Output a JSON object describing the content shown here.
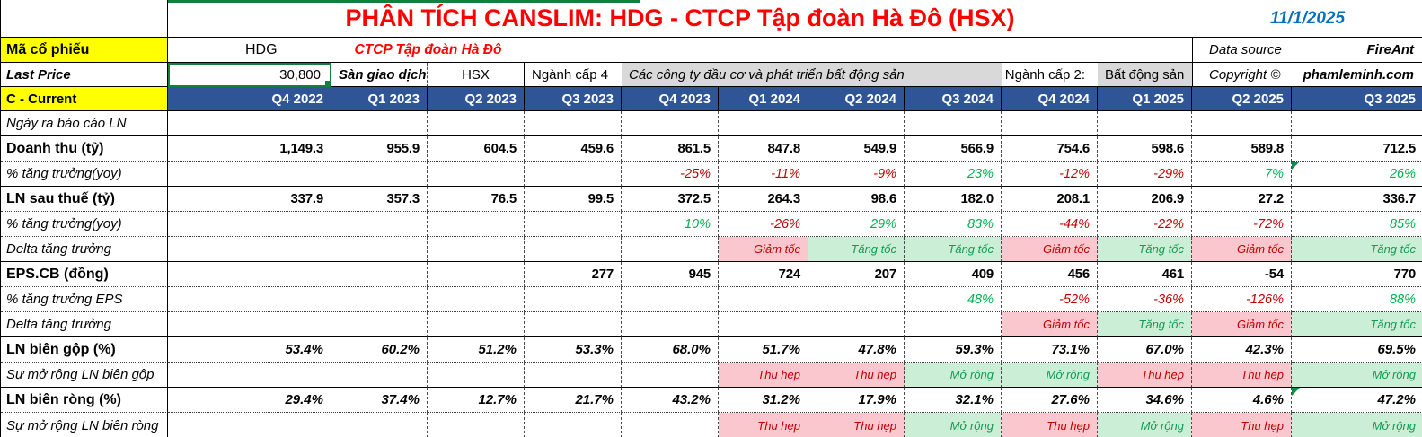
{
  "header": {
    "title": "PHÂN TÍCH CANSLIM: HDG - CTCP Tập đoàn Hà Đô (HSX)",
    "date": "11/1/2025",
    "ticker_label": "Mã cổ phiếu",
    "ticker": "HDG",
    "company_name": "CTCP Tập đoàn Hà Đô",
    "data_source_label": "Data source",
    "data_source_value": "FireAnt",
    "last_price_label": "Last Price",
    "last_price_value": "30,800",
    "exchange_label": "Sàn giao dịch",
    "exchange_value": "HSX",
    "industry_l4_label": "Ngành cấp 4",
    "industry_l4_value": "Các công ty đầu cơ và phát triển bất động sản",
    "industry_l2_label": "Ngành cấp 2:",
    "industry_l2_value": "Bất động sản",
    "copyright_label": "Copyright ©",
    "copyright_owner": "phamleminh.com"
  },
  "table": {
    "section_label": "C - Current",
    "quarters": [
      "Q4 2022",
      "Q1 2023",
      "Q2 2023",
      "Q3 2023",
      "Q4 2023",
      "Q1 2024",
      "Q2 2024",
      "Q3 2024",
      "Q4 2024",
      "Q1 2025",
      "Q2 2025",
      "Q3 2025"
    ],
    "delta_bad_terms": [
      "Giảm tốc",
      "Thu hẹp"
    ],
    "delta_good_terms": [
      "Tăng tốc",
      "Mở rộng"
    ],
    "rows": [
      {
        "label": "Ngày ra báo cáo LN",
        "style": "italic",
        "type": "empty",
        "border": "solid",
        "values": [
          "",
          "",
          "",
          "",
          "",
          "",
          "",
          "",
          "",
          "",
          "",
          ""
        ]
      },
      {
        "label": "Doanh thu (tỷ)",
        "style": "bold",
        "type": "number",
        "border": "dot",
        "values": [
          "1,149.3",
          "955.9",
          "604.5",
          "459.6",
          "861.5",
          "847.8",
          "549.9",
          "566.9",
          "754.6",
          "598.6",
          "589.8",
          "712.5"
        ]
      },
      {
        "label": "% tăng trưởng(yoy)",
        "style": "italic",
        "type": "percent",
        "border": "solid",
        "flags": [
          11
        ],
        "values": [
          "",
          "",
          "",
          "",
          "-25%",
          "-11%",
          "-9%",
          "23%",
          "-12%",
          "-29%",
          "7%",
          "26%"
        ]
      },
      {
        "label": "LN sau thuế (tỷ)",
        "style": "bold",
        "type": "number",
        "border": "dot",
        "values": [
          "337.9",
          "357.3",
          "76.5",
          "99.5",
          "372.5",
          "264.3",
          "98.6",
          "182.0",
          "208.1",
          "206.9",
          "27.2",
          "336.7"
        ]
      },
      {
        "label": "% tăng trưởng(yoy)",
        "style": "italic",
        "type": "percent",
        "border": "dot",
        "values": [
          "",
          "",
          "",
          "",
          "10%",
          "-26%",
          "29%",
          "83%",
          "-44%",
          "-22%",
          "-72%",
          "85%"
        ]
      },
      {
        "label": "Delta tăng trưởng",
        "style": "italic",
        "type": "delta",
        "border": "solid",
        "values": [
          "",
          "",
          "",
          "",
          "",
          "Giảm tốc",
          "Tăng tốc",
          "Tăng tốc",
          "Giảm tốc",
          "Tăng tốc",
          "Giảm tốc",
          "Tăng tốc"
        ]
      },
      {
        "label": "EPS.CB (đồng)",
        "style": "bold",
        "type": "number",
        "border": "dot",
        "values": [
          "",
          "",
          "",
          "277",
          "945",
          "724",
          "207",
          "409",
          "456",
          "461",
          "-54",
          "770"
        ]
      },
      {
        "label": "% tăng trưởng EPS",
        "style": "italic",
        "type": "percent",
        "border": "dot",
        "values": [
          "",
          "",
          "",
          "",
          "",
          "",
          "",
          "48%",
          "-52%",
          "-36%",
          "-126%",
          "88%"
        ]
      },
      {
        "label": "Delta tăng trưởng",
        "style": "italic",
        "type": "delta",
        "border": "solid",
        "values": [
          "",
          "",
          "",
          "",
          "",
          "",
          "",
          "",
          "Giảm tốc",
          "Tăng tốc",
          "Giảm tốc",
          "Tăng tốc"
        ]
      },
      {
        "label": "LN biên gộp (%)",
        "style": "bold",
        "type": "margin",
        "border": "dot",
        "values": [
          "53.4%",
          "60.2%",
          "51.2%",
          "53.3%",
          "68.0%",
          "51.7%",
          "47.8%",
          "59.3%",
          "73.1%",
          "67.0%",
          "42.3%",
          "69.5%"
        ]
      },
      {
        "label": "Sự mở rộng LN biên gộp",
        "style": "italic",
        "type": "delta",
        "border": "solid",
        "values": [
          "",
          "",
          "",
          "",
          "",
          "Thu hẹp",
          "Thu hẹp",
          "Mở rộng",
          "Mở rộng",
          "Thu hẹp",
          "Thu hẹp",
          "Mở rộng"
        ]
      },
      {
        "label": "LN biên ròng (%)",
        "style": "bold",
        "type": "margin",
        "border": "dot",
        "flags": [
          11
        ],
        "values": [
          "29.4%",
          "37.4%",
          "12.7%",
          "21.7%",
          "43.2%",
          "31.2%",
          "17.9%",
          "32.1%",
          "27.6%",
          "34.6%",
          "4.6%",
          "47.2%"
        ]
      },
      {
        "label": "Sự mở rộng LN biên ròng",
        "style": "italic",
        "type": "delta",
        "border": "none",
        "values": [
          "",
          "",
          "",
          "",
          "",
          "Thu hẹp",
          "Thu hẹp",
          "Mở rộng",
          "Thu hẹp",
          "Mở rộng",
          "Thu hẹp",
          "Mở rộng"
        ]
      }
    ]
  },
  "colors": {
    "title_red": "#FF0000",
    "date_blue": "#0070C0",
    "header_blue": "#2F5597",
    "highlight_yellow": "#FFFF00",
    "bad_bg": "#FAC7CE",
    "bad_text": "#C00000",
    "good_bg": "#CBEED6",
    "good_text": "#149A52",
    "positive_pct": "#00B050",
    "negative_pct": "#C00000",
    "gray_cell": "#D9D9D9",
    "accent_green": "#15803D"
  }
}
